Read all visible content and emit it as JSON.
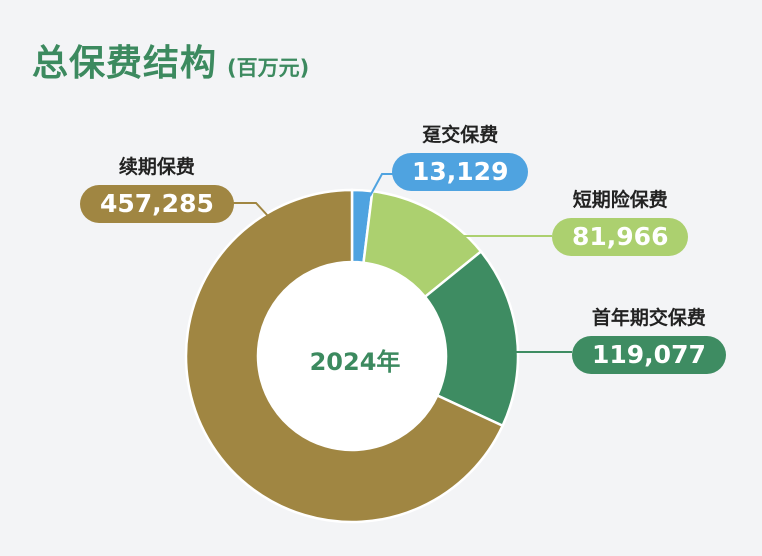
{
  "title": "总保费结构",
  "unit": "(百万元)",
  "center_label": "2024年",
  "chart_data": {
    "type": "pie",
    "title": "总保费结构",
    "unit": "(百万元)",
    "center_label": "2024年",
    "donut": true,
    "slices": [
      {
        "name": "趸交保费",
        "value": 13129,
        "display": "13,129",
        "color": "#4fa3e0"
      },
      {
        "name": "短期险保费",
        "value": 81966,
        "display": "81,966",
        "color": "#acd06f"
      },
      {
        "name": "首年期交保费",
        "value": 119077,
        "display": "119,077",
        "color": "#3e8c62"
      },
      {
        "name": "续期保费",
        "value": 457285,
        "display": "457,285",
        "color": "#a08642"
      }
    ]
  }
}
